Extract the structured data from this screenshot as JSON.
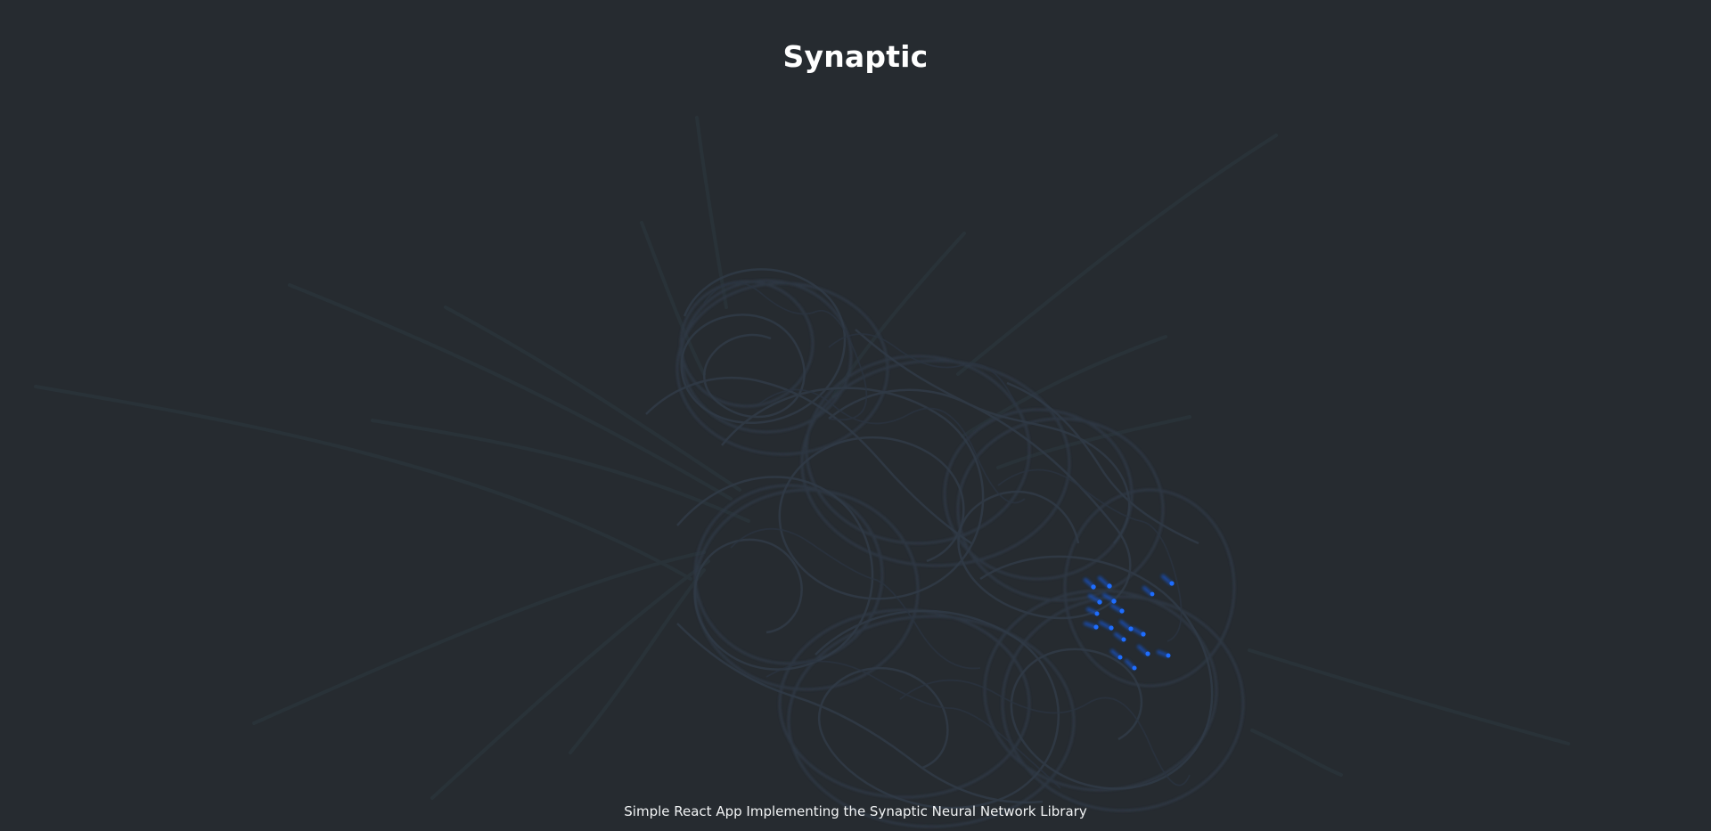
{
  "page": {
    "title": "Synaptic",
    "subtitle": "Simple React App Implementing the Synaptic Neural Network Library"
  },
  "colors": {
    "background": "#262b30",
    "text": "#ffffff",
    "network_trace": "#2d3640",
    "active_signal": "#1e6dff"
  }
}
